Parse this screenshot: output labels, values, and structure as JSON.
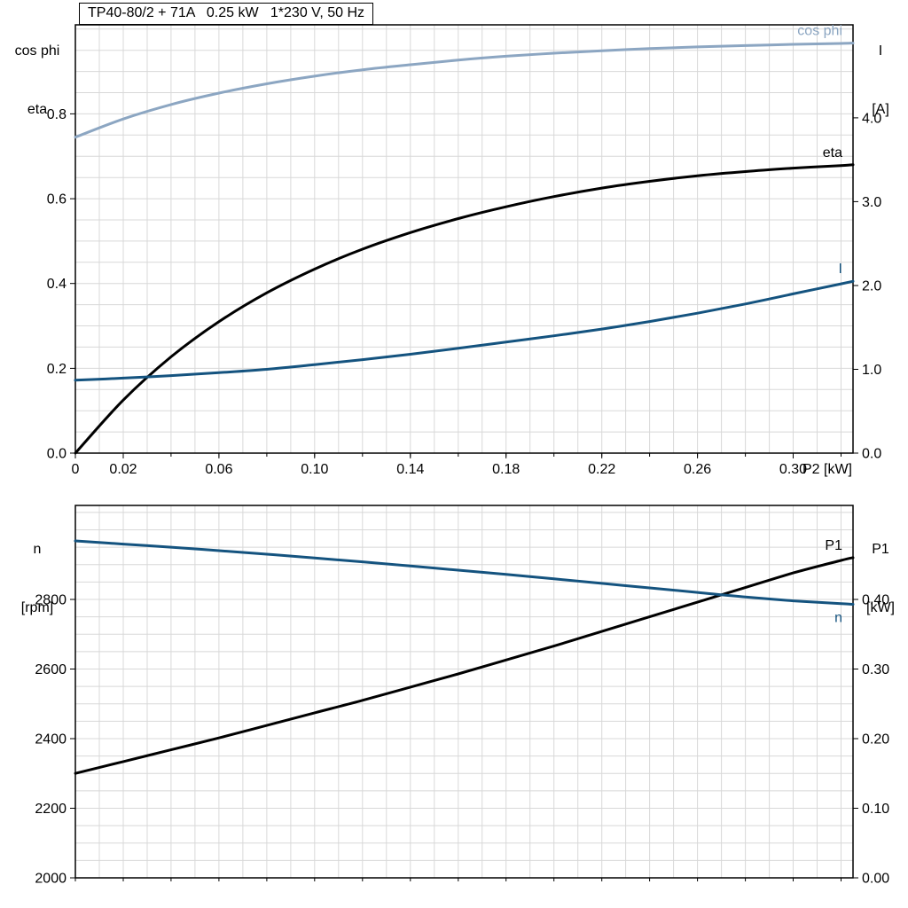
{
  "colors": {
    "light_blue": "#8ca6c2",
    "dark_blue": "#14537f",
    "black": "#000000",
    "grid": "#d8d8d8",
    "frame": "#000000"
  },
  "chart_data": [
    {
      "type": "line",
      "title": "TP40-80/2 + 71A   0.25 kW   1*230 V, 50 Hz",
      "x_axis": {
        "label": "P2 [kW]",
        "range": [
          0,
          0.325
        ],
        "grid_step": 0.01,
        "minor_tick_step": 0.02,
        "ticks": [
          {
            "v": 0,
            "t": "0"
          },
          {
            "v": 0.02,
            "t": "0.02"
          },
          {
            "v": 0.06,
            "t": "0.06"
          },
          {
            "v": 0.1,
            "t": "0.10"
          },
          {
            "v": 0.14,
            "t": "0.14"
          },
          {
            "v": 0.18,
            "t": "0.18"
          },
          {
            "v": 0.22,
            "t": "0.22"
          },
          {
            "v": 0.26,
            "t": "0.26"
          },
          {
            "v": 0.3,
            "t": "0.30"
          }
        ]
      },
      "y_left": {
        "header": [
          "cos phi",
          "eta"
        ],
        "range": [
          0,
          1.01
        ],
        "grid_step": 0.05,
        "ticks": [
          {
            "v": 0,
            "t": "0.0"
          },
          {
            "v": 0.2,
            "t": "0.2"
          },
          {
            "v": 0.4,
            "t": "0.4"
          },
          {
            "v": 0.6,
            "t": "0.6"
          },
          {
            "v": 0.8,
            "t": "0.8"
          }
        ]
      },
      "y_right": {
        "header": [
          "I",
          "[A]"
        ],
        "range": [
          0,
          5.11
        ],
        "ticks": [
          {
            "v": 0,
            "t": "0.0"
          },
          {
            "v": 1,
            "t": "1.0"
          },
          {
            "v": 2,
            "t": "2.0"
          },
          {
            "v": 3,
            "t": "3.0"
          },
          {
            "v": 4,
            "t": "4.0"
          }
        ]
      },
      "x": [
        0,
        0.02,
        0.04,
        0.06,
        0.08,
        0.1,
        0.12,
        0.14,
        0.16,
        0.18,
        0.2,
        0.22,
        0.24,
        0.26,
        0.28,
        0.3,
        0.32,
        0.325
      ],
      "series": [
        {
          "name": "cos phi",
          "axis": "left",
          "color": "light_blue",
          "width": 3,
          "label_side": "above",
          "values": [
            0.745,
            0.788,
            0.822,
            0.849,
            0.871,
            0.889,
            0.904,
            0.916,
            0.927,
            0.936,
            0.943,
            0.949,
            0.954,
            0.958,
            0.961,
            0.964,
            0.966,
            0.967
          ]
        },
        {
          "name": "eta",
          "axis": "left",
          "color": "black",
          "width": 3,
          "label_side": "above",
          "values": [
            0,
            0.125,
            0.227,
            0.31,
            0.378,
            0.434,
            0.481,
            0.52,
            0.553,
            0.581,
            0.605,
            0.625,
            0.641,
            0.654,
            0.664,
            0.672,
            0.678,
            0.68
          ]
        },
        {
          "name": "I",
          "axis": "right",
          "color": "dark_blue",
          "width": 3,
          "label_side": "above",
          "values": [
            0.87,
            0.895,
            0.925,
            0.96,
            1.0,
            1.055,
            1.115,
            1.18,
            1.25,
            1.325,
            1.4,
            1.48,
            1.57,
            1.67,
            1.78,
            1.9,
            2.02,
            2.05
          ]
        }
      ]
    },
    {
      "type": "line",
      "title": "",
      "x_axis": {
        "label": "",
        "range": [
          0,
          0.325
        ],
        "grid_step": 0.01,
        "minor_tick_step": 0.02,
        "ticks": []
      },
      "y_left": {
        "header": [
          "n",
          "[rpm]"
        ],
        "range": [
          2000,
          3070
        ],
        "grid_step": 50,
        "ticks": [
          {
            "v": 2000,
            "t": "2000"
          },
          {
            "v": 2200,
            "t": "2200"
          },
          {
            "v": 2400,
            "t": "2400"
          },
          {
            "v": 2600,
            "t": "2600"
          },
          {
            "v": 2800,
            "t": "2800"
          }
        ]
      },
      "y_right": {
        "header": [
          "P1",
          "[kW]"
        ],
        "range": [
          0,
          0.535
        ],
        "ticks": [
          {
            "v": 0,
            "t": "0.00"
          },
          {
            "v": 0.1,
            "t": "0.10"
          },
          {
            "v": 0.2,
            "t": "0.20"
          },
          {
            "v": 0.3,
            "t": "0.30"
          },
          {
            "v": 0.4,
            "t": "0.40"
          }
        ]
      },
      "x": [
        0,
        0.02,
        0.04,
        0.06,
        0.08,
        0.1,
        0.12,
        0.14,
        0.16,
        0.18,
        0.2,
        0.22,
        0.24,
        0.26,
        0.28,
        0.3,
        0.32,
        0.325
      ],
      "series": [
        {
          "name": "P1",
          "axis": "right",
          "color": "black",
          "width": 3,
          "label_side": "above",
          "values": [
            0.15,
            0.167,
            0.184,
            0.201,
            0.219,
            0.237,
            0.255,
            0.274,
            0.293,
            0.313,
            0.333,
            0.354,
            0.375,
            0.396,
            0.417,
            0.438,
            0.456,
            0.46
          ]
        },
        {
          "name": "n",
          "axis": "left",
          "color": "dark_blue",
          "width": 3,
          "label_side": "below",
          "values": [
            2968,
            2959,
            2950,
            2940,
            2930,
            2919,
            2908,
            2896,
            2884,
            2872,
            2859,
            2846,
            2833,
            2820,
            2807,
            2796,
            2788,
            2786
          ]
        }
      ]
    }
  ]
}
